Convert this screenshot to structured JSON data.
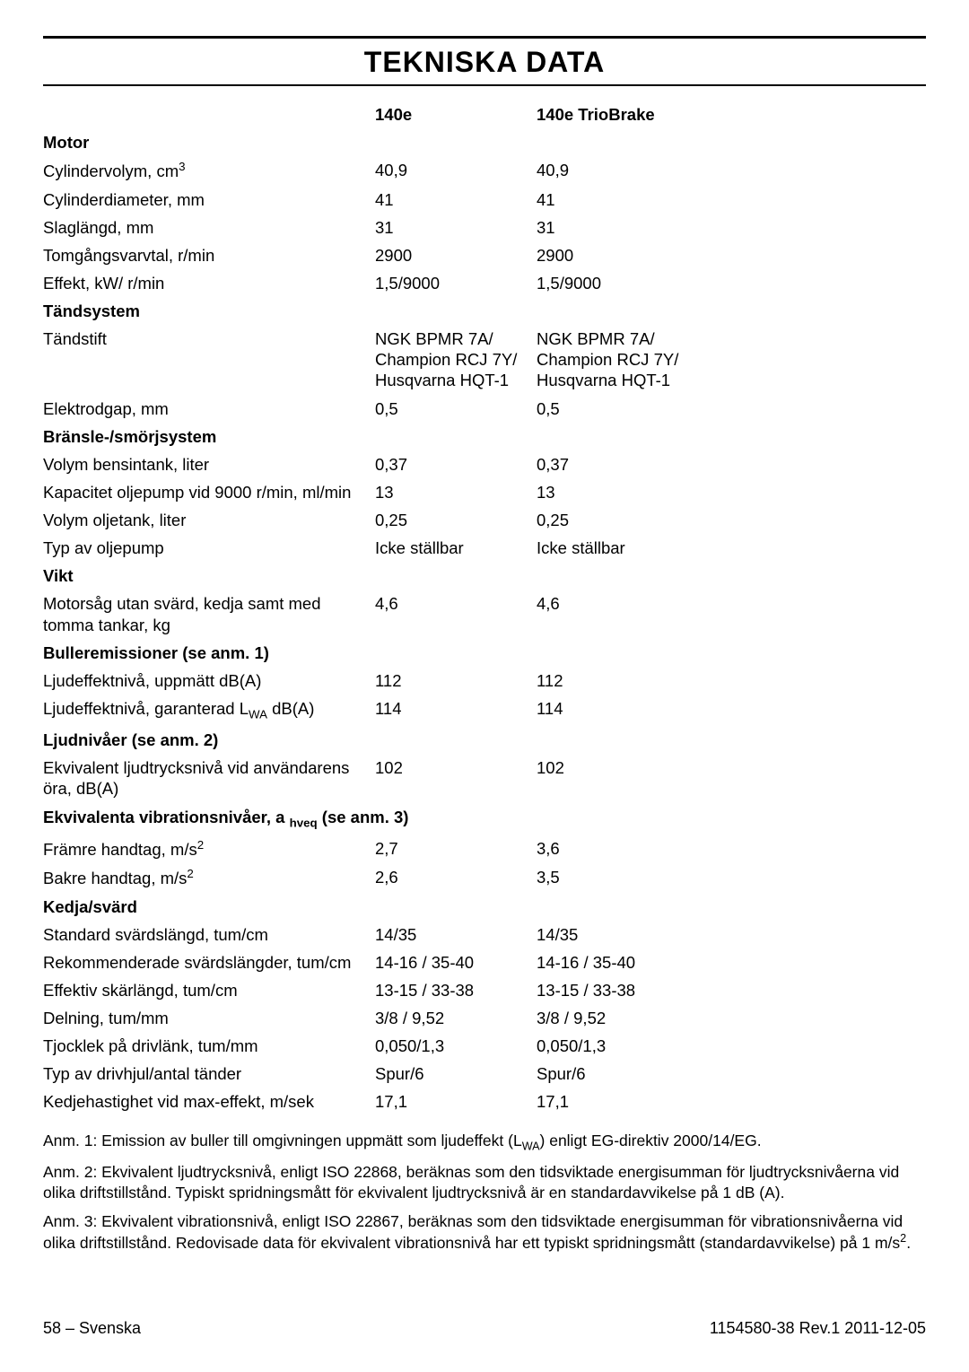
{
  "title": "TEKNISKA DATA",
  "headers": {
    "col1": "140e",
    "col2": "140e TrioBrake"
  },
  "sections": [
    {
      "name": "Motor",
      "rows": [
        {
          "label": "Cylindervolym, cm<sup>3</sup>",
          "v1": "40,9",
          "v2": "40,9"
        },
        {
          "label": "Cylinderdiameter, mm",
          "v1": "41",
          "v2": "41"
        },
        {
          "label": "Slaglängd, mm",
          "v1": "31",
          "v2": "31"
        },
        {
          "label": "Tomgångsvarvtal, r/min",
          "v1": "2900",
          "v2": "2900"
        },
        {
          "label": "Effekt, kW/ r/min",
          "v1": "1,5/9000",
          "v2": "1,5/9000"
        }
      ]
    },
    {
      "name": "Tändsystem",
      "rows": [
        {
          "label": "Tändstift",
          "v1": "NGK BPMR 7A/<br>Champion RCJ 7Y/<br>Husqvarna HQT-1",
          "v2": "NGK BPMR 7A/<br>Champion RCJ 7Y/<br>Husqvarna HQT-1"
        },
        {
          "label": "Elektrodgap, mm",
          "v1": "0,5",
          "v2": "0,5"
        }
      ]
    },
    {
      "name": "Bränsle-/smörjsystem",
      "rows": [
        {
          "label": "Volym bensintank, liter",
          "v1": "0,37",
          "v2": "0,37"
        },
        {
          "label": "Kapacitet oljepump vid 9000 r/min, ml/min",
          "v1": "13",
          "v2": "13"
        },
        {
          "label": "Volym oljetank, liter",
          "v1": "0,25",
          "v2": "0,25"
        },
        {
          "label": "Typ av oljepump",
          "v1": "Icke ställbar",
          "v2": "Icke ställbar"
        }
      ]
    },
    {
      "name": "Vikt",
      "rows": [
        {
          "label": "Motorsåg utan svärd, kedja samt med tomma tankar, kg",
          "v1": "4,6",
          "v2": "4,6"
        }
      ]
    },
    {
      "name": "Bulleremissioner (se anm. 1)",
      "rows": [
        {
          "label": "Ljudeffektnivå, uppmätt dB(A)",
          "v1": "112",
          "v2": "112"
        },
        {
          "label": "Ljudeffektnivå, garanterad L<sub>WA</sub> dB(A)",
          "v1": "114",
          "v2": "114"
        }
      ]
    },
    {
      "name": "Ljudnivåer (se anm. 2)",
      "rows": [
        {
          "label": "Ekvivalent ljudtrycksnivå vid användarens öra, dB(A)",
          "v1": "102",
          "v2": "102"
        }
      ]
    },
    {
      "name": "Ekvivalenta vibrationsnivåer, a <sub>hveq</sub> (se anm. 3)",
      "rows": [
        {
          "label": "Främre handtag, m/s<sup>2</sup>",
          "v1": "2,7",
          "v2": "3,6"
        },
        {
          "label": "Bakre handtag, m/s<sup>2</sup>",
          "v1": "2,6",
          "v2": "3,5"
        }
      ]
    },
    {
      "name": "Kedja/svärd",
      "rows": [
        {
          "label": "Standard svärdslängd, tum/cm",
          "v1": "14/35",
          "v2": "14/35"
        },
        {
          "label": "Rekommenderade svärdslängder, tum/cm",
          "v1": "14-16 / 35-40",
          "v2": "14-16 / 35-40"
        },
        {
          "label": "Effektiv skärlängd, tum/cm",
          "v1": "13-15 / 33-38",
          "v2": "13-15 / 33-38"
        },
        {
          "label": "Delning, tum/mm",
          "v1": "3/8 / 9,52",
          "v2": "3/8 / 9,52"
        },
        {
          "label": "Tjocklek på drivlänk, tum/mm",
          "v1": "0,050/1,3",
          "v2": "0,050/1,3"
        },
        {
          "label": "Typ av drivhjul/antal tänder",
          "v1": "Spur/6",
          "v2": "Spur/6"
        },
        {
          "label": "Kedjehastighet vid max-effekt, m/sek",
          "v1": "17,1",
          "v2": "17,1"
        }
      ]
    }
  ],
  "notes": [
    "Anm. 1: Emission av buller till omgivningen uppmätt som ljudeffekt (L<sub>WA</sub>) enligt EG-direktiv 2000/14/EG.",
    "Anm. 2: Ekvivalent ljudtrycksnivå, enligt ISO 22868, beräknas som den tidsviktade energisumman för ljudtrycksnivåerna vid olika driftstillstånd. Typiskt spridningsmått för ekvivalent ljudtrycksnivå är en standardavvikelse på 1 dB (A).",
    "Anm. 3: Ekvivalent vibrationsnivå, enligt ISO 22867, beräknas som den tidsviktade energisumman för vibrationsnivåerna vid olika driftstillstånd. Redovisade data för ekvivalent vibrationsnivå har ett typiskt spridningsmått (standardavvikelse) på 1 m/s<sup>2</sup>."
  ],
  "footer": {
    "left": "58 – Svenska",
    "right": "1154580-38 Rev.1 2011-12-05"
  }
}
